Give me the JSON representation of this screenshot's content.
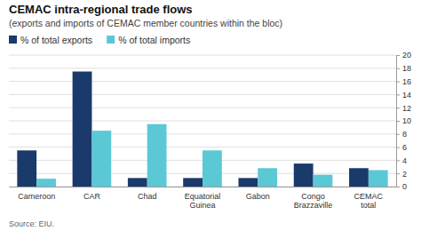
{
  "chart_data": {
    "type": "bar",
    "title": "CEMAC intra-regional trade flows",
    "subtitle": "(exports and imports of CEMAC member countries within the bloc)",
    "source": "Source: EIU.",
    "categories": [
      "Cameroon",
      "CAR",
      "Chad",
      "Equatorial\nGuinea",
      "Gabon",
      "Congo\nBrazzaville",
      "CEMAC\ntotal"
    ],
    "series": [
      {
        "name": "% of total exports",
        "color": "#1a3a6b",
        "values": [
          5.5,
          17.5,
          1.3,
          1.3,
          1.3,
          3.5,
          2.8
        ]
      },
      {
        "name": "% of total imports",
        "color": "#5bc8d5",
        "values": [
          1.2,
          8.5,
          9.5,
          5.5,
          2.8,
          1.8,
          2.5
        ]
      }
    ],
    "ylim": [
      0,
      20
    ],
    "yticks": [
      0,
      2,
      4,
      6,
      8,
      10,
      12,
      14,
      16,
      18,
      20
    ],
    "grid": true,
    "legend": "upper left"
  }
}
